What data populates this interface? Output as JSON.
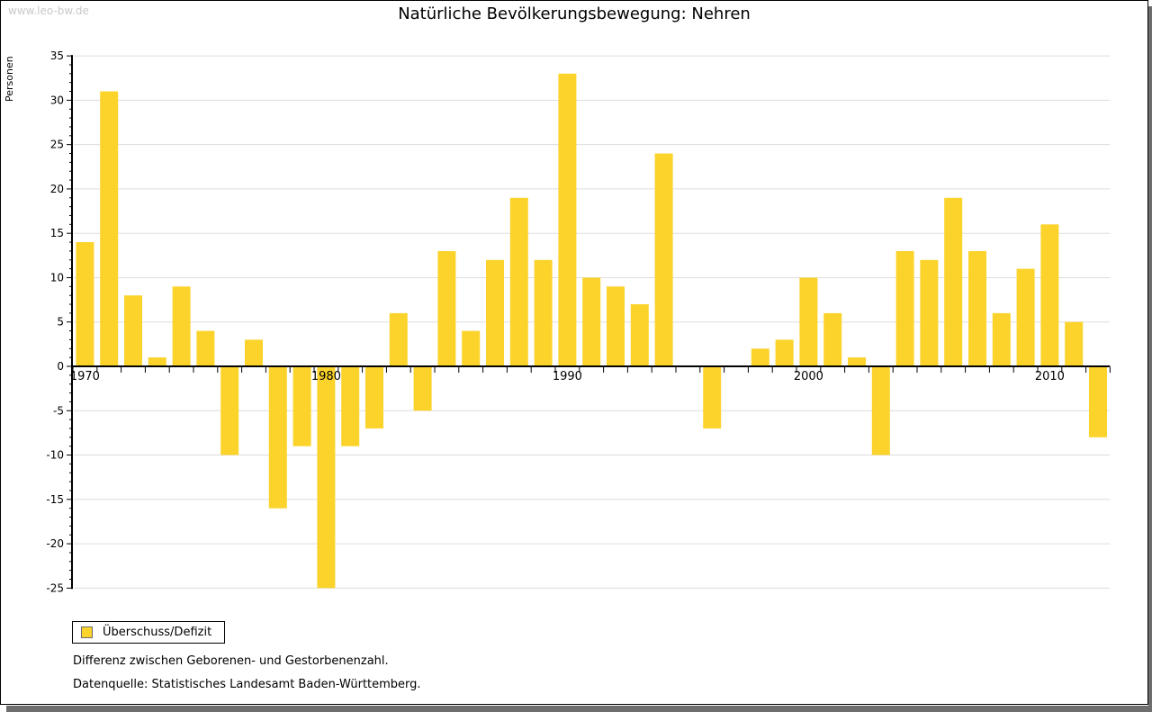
{
  "watermark": "www.leo-bw.de",
  "title": "Natürliche Bevölkerungsbewegung: Nehren",
  "ylabel": "Personen",
  "legend": {
    "label": "Überschuss/Defizit"
  },
  "footnotes": [
    "Differenz zwischen Geborenen- und Gestorbenenzahl.",
    "Datenquelle: Statistisches Landesamt Baden-Württemberg."
  ],
  "colors": {
    "bar": "#FCD32B",
    "grid": "#dddddd",
    "axis": "#000000",
    "tick_label": "#000000",
    "watermark": "#c9c9c9",
    "frame_shadow": "#6e6e6e"
  },
  "chart_data": {
    "type": "bar",
    "title": "Natürliche Bevölkerungsbewegung: Nehren",
    "xlabel": "",
    "ylabel": "Personen",
    "series_name": "Überschuss/Defizit",
    "x": [
      1970,
      1971,
      1972,
      1973,
      1974,
      1975,
      1976,
      1977,
      1978,
      1979,
      1980,
      1981,
      1982,
      1983,
      1984,
      1985,
      1986,
      1987,
      1988,
      1989,
      1990,
      1991,
      1992,
      1993,
      1994,
      1995,
      1996,
      1997,
      1998,
      1999,
      2000,
      2001,
      2002,
      2003,
      2004,
      2005,
      2006,
      2007,
      2008,
      2009,
      2010,
      2011,
      2012
    ],
    "values": [
      14,
      31,
      8,
      1,
      9,
      4,
      -10,
      3,
      -16,
      -9,
      -25,
      -9,
      -7,
      6,
      -5,
      13,
      4,
      12,
      19,
      12,
      33,
      10,
      9,
      7,
      24,
      0,
      -7,
      0,
      2,
      3,
      10,
      6,
      1,
      -10,
      13,
      12,
      19,
      13,
      6,
      11,
      16,
      5,
      -8
    ],
    "ylim": [
      -25,
      35
    ],
    "ytick_step": 5,
    "ytick_labels": [
      35,
      30,
      25,
      20,
      15,
      10,
      5,
      0,
      -5,
      -10,
      -15,
      -20,
      -25
    ],
    "y_minor_tick_step": 1,
    "xtick_labels": [
      1970,
      1980,
      1990,
      2000,
      2010
    ],
    "grid": true,
    "legend_position": "bottom-left"
  }
}
